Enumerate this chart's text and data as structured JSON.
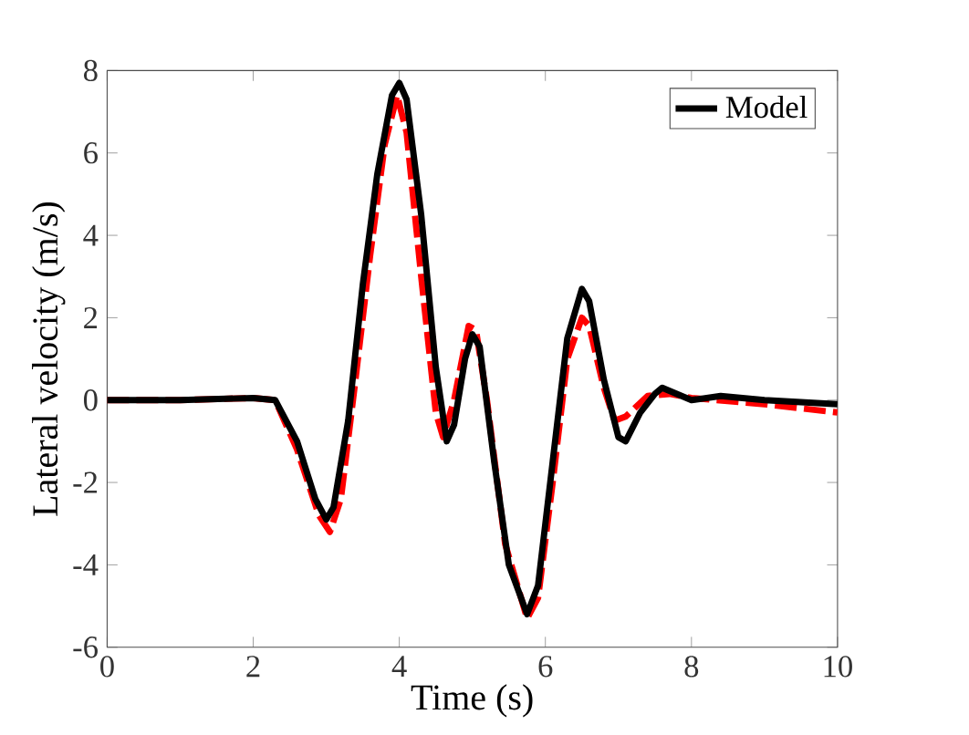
{
  "chart_data": {
    "type": "line",
    "xlabel": "Time (s)",
    "ylabel": "Lateral velocity (m/s)",
    "xlim": [
      0,
      10
    ],
    "ylim": [
      -6,
      8
    ],
    "xticks": [
      0,
      2,
      4,
      6,
      8,
      10
    ],
    "yticks": [
      -6,
      -4,
      -2,
      0,
      2,
      4,
      6,
      8
    ],
    "legend": "top right",
    "grid": false,
    "marker": "none",
    "series": [
      {
        "color": "#ff0000",
        "line_style": "dashed",
        "x": [
          0,
          1,
          2,
          2.3,
          2.6,
          2.9,
          3.05,
          3.2,
          3.4,
          3.6,
          3.8,
          3.97,
          4.1,
          4.3,
          4.5,
          4.6,
          4.75,
          4.95,
          5.05,
          5.2,
          5.45,
          5.75,
          5.9,
          6.1,
          6.3,
          6.5,
          6.6,
          6.8,
          6.95,
          7.1,
          7.4,
          7.7,
          8,
          9,
          10
        ],
        "values": [
          0,
          0,
          0.05,
          0,
          -1.2,
          -2.8,
          -3.2,
          -2.4,
          0.5,
          3.5,
          6.2,
          7.4,
          6.5,
          3,
          -0.3,
          -0.9,
          0,
          1.8,
          1.7,
          0,
          -3.5,
          -5.3,
          -4.8,
          -2,
          1,
          2,
          1.8,
          0.3,
          -0.5,
          -0.4,
          0.1,
          0.15,
          0.05,
          -0.1,
          -0.3
        ]
      },
      {
        "name": "Model",
        "color": "#000000",
        "line_style": "solid",
        "x": [
          0,
          1,
          2,
          2.3,
          2.6,
          2.85,
          3,
          3.1,
          3.3,
          3.5,
          3.7,
          3.9,
          4,
          4.1,
          4.3,
          4.5,
          4.65,
          4.75,
          4.9,
          5,
          5.1,
          5.3,
          5.5,
          5.75,
          5.9,
          6.1,
          6.3,
          6.5,
          6.6,
          6.8,
          7,
          7.1,
          7.3,
          7.5,
          7.6,
          7.8,
          8,
          8.4,
          9,
          10
        ],
        "values": [
          0,
          0,
          0.05,
          0,
          -1,
          -2.4,
          -2.9,
          -2.6,
          -0.5,
          2.8,
          5.5,
          7.4,
          7.7,
          7.3,
          4.5,
          0.8,
          -1,
          -0.6,
          1,
          1.6,
          1.3,
          -1.5,
          -4,
          -5.2,
          -4.5,
          -1.5,
          1.5,
          2.7,
          2.4,
          0.5,
          -0.9,
          -1,
          -0.3,
          0.15,
          0.3,
          0.15,
          0,
          0.1,
          0,
          -0.1
        ]
      }
    ]
  }
}
